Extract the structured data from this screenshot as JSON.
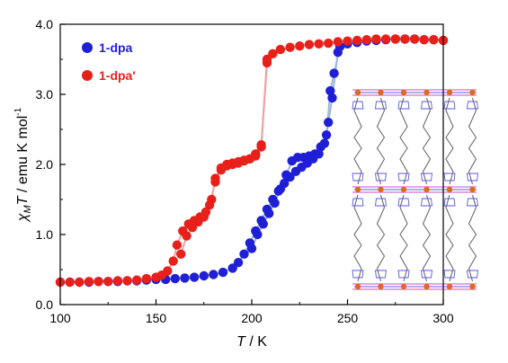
{
  "chart_data": {
    "type": "scatter",
    "xlim": [
      100,
      300
    ],
    "ylim": [
      0.0,
      4.0
    ],
    "x_ticks": [
      "100",
      "150",
      "200",
      "250",
      "300"
    ],
    "y_ticks": [
      "0.0",
      "1.0",
      "2.0",
      "3.0",
      "4.0"
    ],
    "xlabel": {
      "italic": "T",
      "rest": " / K"
    },
    "ylabel": {
      "chi": "χ",
      "sub": "M",
      "t": "T",
      "rest": " / emu K mol",
      "sup": "-1"
    },
    "grid": false,
    "legend_position": "top-left",
    "series": [
      {
        "name": "1-dpa",
        "color": "#1f1fd6",
        "line_color": "#9fb8dc",
        "cooling": [
          [
            100,
            0.32
          ],
          [
            105,
            0.32
          ],
          [
            110,
            0.32
          ],
          [
            115,
            0.32
          ],
          [
            120,
            0.33
          ],
          [
            125,
            0.33
          ],
          [
            130,
            0.33
          ],
          [
            135,
            0.34
          ],
          [
            140,
            0.34
          ],
          [
            145,
            0.35
          ],
          [
            150,
            0.36
          ],
          [
            155,
            0.36
          ],
          [
            160,
            0.37
          ],
          [
            165,
            0.38
          ],
          [
            170,
            0.39
          ],
          [
            175,
            0.41
          ],
          [
            180,
            0.43
          ],
          [
            185,
            0.46
          ],
          [
            190,
            0.52
          ],
          [
            193,
            0.6
          ],
          [
            196,
            0.72
          ],
          [
            199,
            0.88
          ],
          [
            202,
            1.05
          ],
          [
            205,
            1.2
          ],
          [
            208,
            1.36
          ],
          [
            211,
            1.5
          ],
          [
            214,
            1.62
          ],
          [
            217,
            1.73
          ],
          [
            220,
            1.82
          ],
          [
            223,
            1.9
          ],
          [
            226,
            1.96
          ],
          [
            229,
            2.02
          ],
          [
            232,
            2.08
          ],
          [
            235,
            2.15
          ],
          [
            238,
            2.3
          ],
          [
            240,
            2.6
          ],
          [
            242,
            2.95
          ],
          [
            245,
            3.6
          ],
          [
            250,
            3.72
          ],
          [
            255,
            3.74
          ],
          [
            260,
            3.76
          ],
          [
            265,
            3.77
          ],
          [
            270,
            3.78
          ],
          [
            275,
            3.79
          ],
          [
            280,
            3.79
          ],
          [
            285,
            3.79
          ],
          [
            290,
            3.78
          ],
          [
            295,
            3.78
          ],
          [
            300,
            3.77
          ]
        ],
        "heating": [
          [
            200,
            0.8
          ],
          [
            203,
            1.0
          ],
          [
            206,
            1.15
          ],
          [
            209,
            1.3
          ],
          [
            212,
            1.45
          ],
          [
            215,
            1.65
          ],
          [
            218,
            1.85
          ],
          [
            221,
            2.05
          ],
          [
            224,
            2.1
          ],
          [
            227,
            2.1
          ],
          [
            230,
            2.12
          ],
          [
            233,
            2.15
          ],
          [
            236,
            2.25
          ],
          [
            239,
            2.42
          ],
          [
            241,
            3.05
          ],
          [
            243,
            3.3
          ],
          [
            246,
            3.68
          ]
        ]
      },
      {
        "name": "1-dpa′",
        "color": "#e8201a",
        "line_color": "#f2a0a0",
        "cooling": [
          [
            100,
            0.32
          ],
          [
            105,
            0.32
          ],
          [
            110,
            0.32
          ],
          [
            115,
            0.33
          ],
          [
            120,
            0.33
          ],
          [
            125,
            0.33
          ],
          [
            130,
            0.34
          ],
          [
            135,
            0.34
          ],
          [
            140,
            0.35
          ],
          [
            145,
            0.37
          ],
          [
            150,
            0.39
          ],
          [
            153,
            0.42
          ],
          [
            156,
            0.48
          ],
          [
            159,
            0.62
          ],
          [
            161,
            0.85
          ],
          [
            164,
            1.05
          ],
          [
            167,
            1.15
          ],
          [
            170,
            1.2
          ],
          [
            173,
            1.25
          ],
          [
            176,
            1.32
          ],
          [
            179,
            1.5
          ],
          [
            181,
            1.8
          ],
          [
            184,
            1.95
          ],
          [
            187,
            2.0
          ],
          [
            190,
            2.02
          ],
          [
            193,
            2.04
          ],
          [
            196,
            2.06
          ],
          [
            199,
            2.08
          ],
          [
            202,
            2.15
          ],
          [
            205,
            2.25
          ],
          [
            208,
            3.45
          ],
          [
            211,
            3.58
          ],
          [
            215,
            3.64
          ],
          [
            220,
            3.67
          ],
          [
            225,
            3.69
          ],
          [
            230,
            3.71
          ],
          [
            235,
            3.72
          ],
          [
            240,
            3.73
          ],
          [
            245,
            3.75
          ],
          [
            250,
            3.76
          ],
          [
            255,
            3.77
          ],
          [
            260,
            3.78
          ],
          [
            265,
            3.79
          ],
          [
            270,
            3.79
          ],
          [
            275,
            3.79
          ],
          [
            280,
            3.79
          ],
          [
            285,
            3.79
          ],
          [
            290,
            3.78
          ],
          [
            295,
            3.78
          ],
          [
            300,
            3.77
          ]
        ],
        "heating": [
          [
            163,
            0.72
          ],
          [
            166,
            0.98
          ],
          [
            169,
            1.1
          ],
          [
            172,
            1.18
          ],
          [
            175,
            1.25
          ],
          [
            178,
            1.42
          ],
          [
            181,
            1.75
          ],
          [
            184,
            1.92
          ],
          [
            187,
            1.98
          ],
          [
            190,
            2.0
          ],
          [
            193,
            2.02
          ],
          [
            196,
            2.05
          ],
          [
            199,
            2.08
          ],
          [
            202,
            2.12
          ],
          [
            205,
            2.28
          ],
          [
            208,
            3.5
          ]
        ]
      }
    ]
  },
  "inset": {
    "description_label": "crystal-structure-inset",
    "colors": {
      "metal": "#e06a1a",
      "nitrogen": "#5a5ad8",
      "carbon": "#6b6b6b",
      "sulfur": "#d88ad8"
    }
  }
}
